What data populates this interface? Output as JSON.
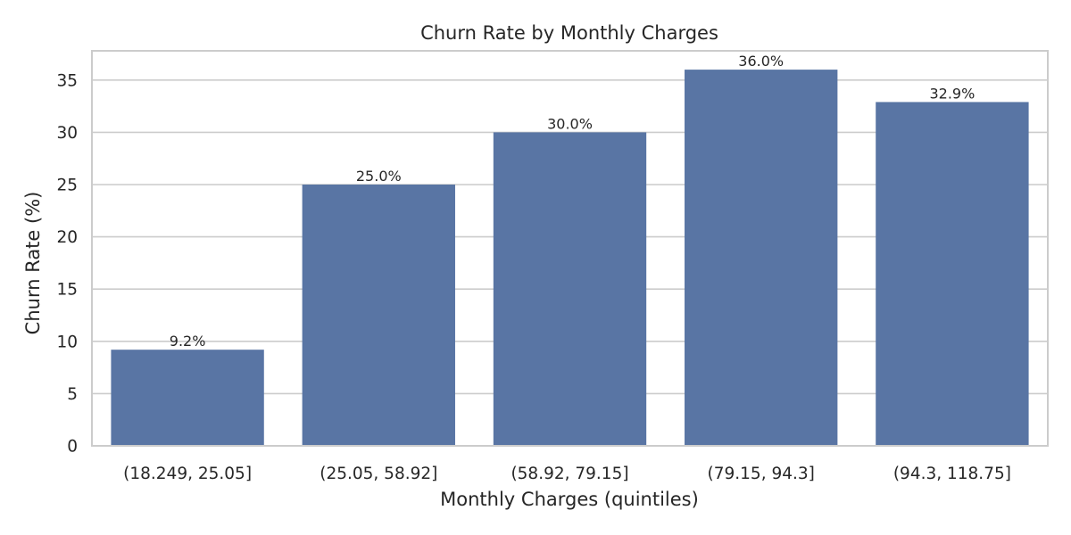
{
  "chart_data": {
    "type": "bar",
    "title": "Churn Rate by Monthly Charges",
    "xlabel": "Monthly Charges (quintiles)",
    "ylabel": "Churn Rate (%)",
    "categories": [
      "(18.249, 25.05]",
      "(25.05, 58.92]",
      "(58.92, 79.15]",
      "(79.15, 94.3]",
      "(94.3, 118.75]"
    ],
    "values": [
      9.2,
      25.0,
      30.0,
      36.0,
      32.9
    ],
    "data_labels": [
      "9.2%",
      "25.0%",
      "30.0%",
      "36.0%",
      "32.9%"
    ],
    "ylim": [
      0,
      37.8
    ],
    "yticks": [
      0,
      5,
      10,
      15,
      20,
      25,
      30,
      35
    ],
    "ytick_labels": [
      "0",
      "5",
      "10",
      "15",
      "20",
      "25",
      "30",
      "35"
    ],
    "grid": true,
    "bar_color": "#5975a4",
    "grid_color": "#cccccc",
    "spine_color": "#cccccc"
  }
}
